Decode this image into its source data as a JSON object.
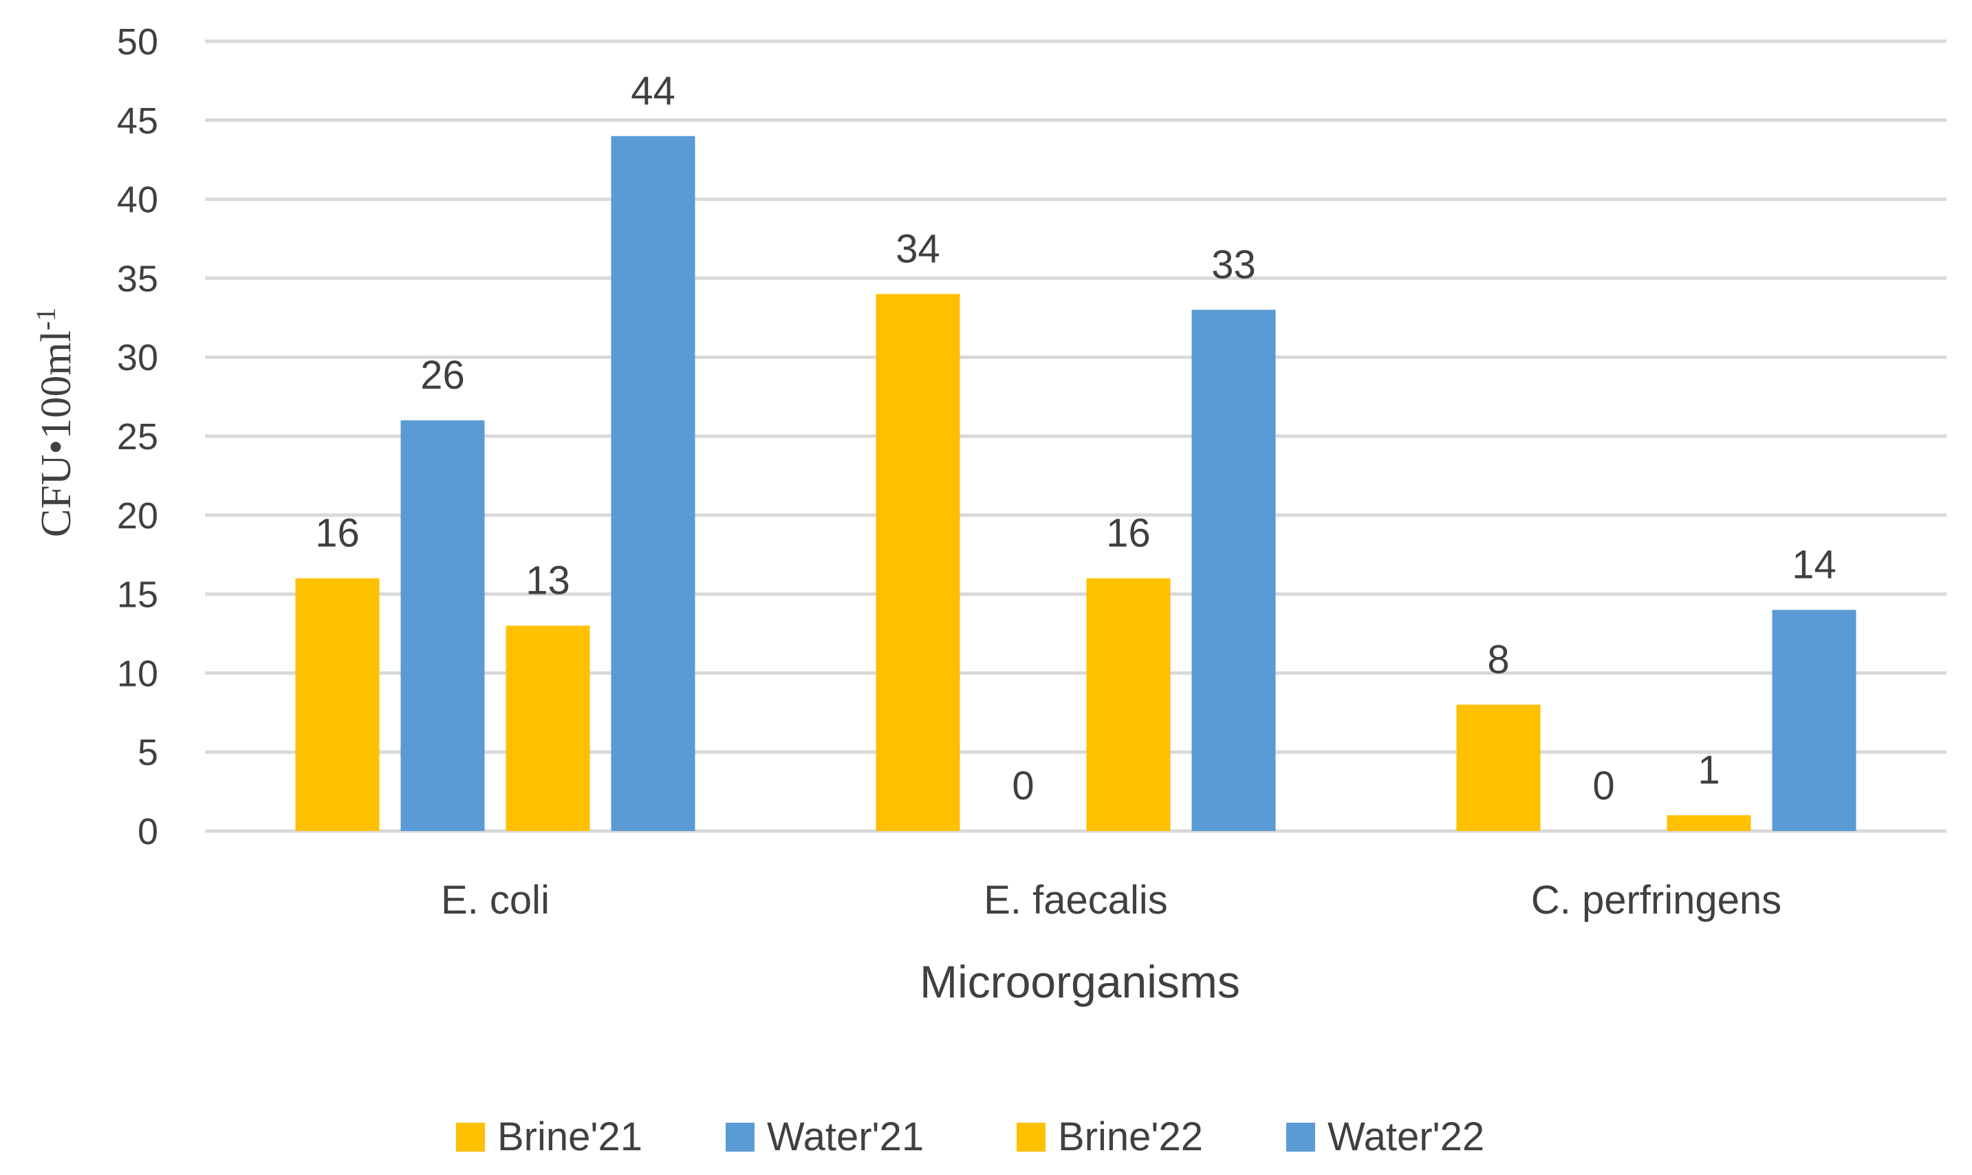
{
  "chart_data": {
    "type": "bar",
    "title": "",
    "categories": [
      "E. coli",
      "E. faecalis",
      "C. perfringens"
    ],
    "series": [
      {
        "name": "Brine'21",
        "color": "#FFC000",
        "values": [
          16,
          34,
          8
        ]
      },
      {
        "name": "Water'21",
        "color": "#5B9BD5",
        "values": [
          26,
          0,
          0
        ]
      },
      {
        "name": "Brine'22",
        "color": "#FFC000",
        "values": [
          13,
          16,
          1
        ]
      },
      {
        "name": "Water'22",
        "color": "#5B9BD5",
        "values": [
          44,
          33,
          14
        ]
      }
    ],
    "xlabel": "Microorganisms",
    "ylabel": "CFU•100ml",
    "ylabel_superscript": "-1",
    "ylim": [
      0,
      50
    ],
    "yticks": [
      0,
      5,
      10,
      15,
      20,
      25,
      30,
      35,
      40,
      45,
      50
    ],
    "grid": true,
    "legend_position": "bottom",
    "gridline_color": "#D9D9D9",
    "text_color": "#404040"
  }
}
